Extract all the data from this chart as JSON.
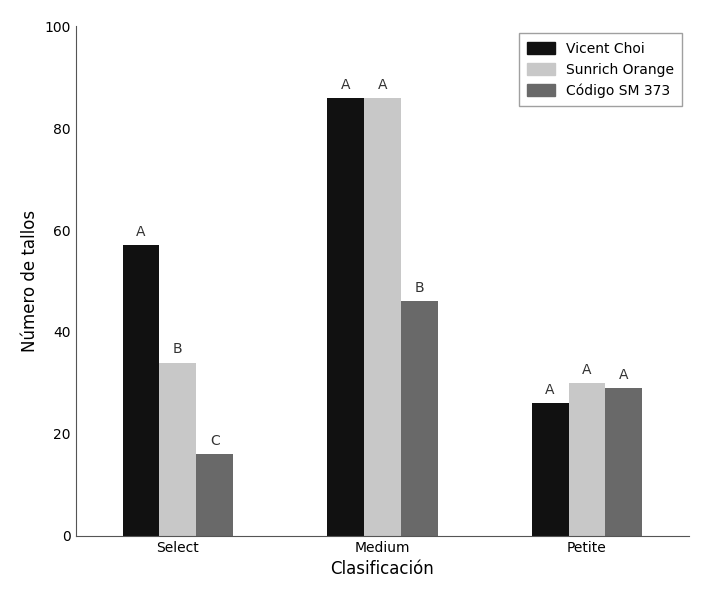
{
  "categories": [
    "Select",
    "Medium",
    "Petite"
  ],
  "series": {
    "Vicent Choi": [
      57,
      86,
      26
    ],
    "Sunrich Orange": [
      34,
      86,
      30
    ],
    "Código SM 373": [
      16,
      46,
      29
    ]
  },
  "colors": {
    "Vicent Choi": "#111111",
    "Sunrich Orange": "#c8c8c8",
    "Código SM 373": "#696969"
  },
  "letters": {
    "Select": [
      "A",
      "B",
      "C"
    ],
    "Medium": [
      "A",
      "A",
      "B"
    ],
    "Petite": [
      "A",
      "A",
      "A"
    ]
  },
  "xlabel": "Clasificación",
  "ylabel": "Número de tallos",
  "ylim": [
    0,
    100
  ],
  "yticks": [
    0,
    20,
    40,
    60,
    80,
    100
  ],
  "bar_width": 0.18,
  "legend_labels": [
    "Vicent Choi",
    "Sunrich Orange",
    "Código SM 373"
  ],
  "legend_loc": "upper right",
  "background_color": "#ffffff",
  "letter_fontsize": 10,
  "axis_label_fontsize": 12,
  "tick_fontsize": 10,
  "legend_fontsize": 10
}
